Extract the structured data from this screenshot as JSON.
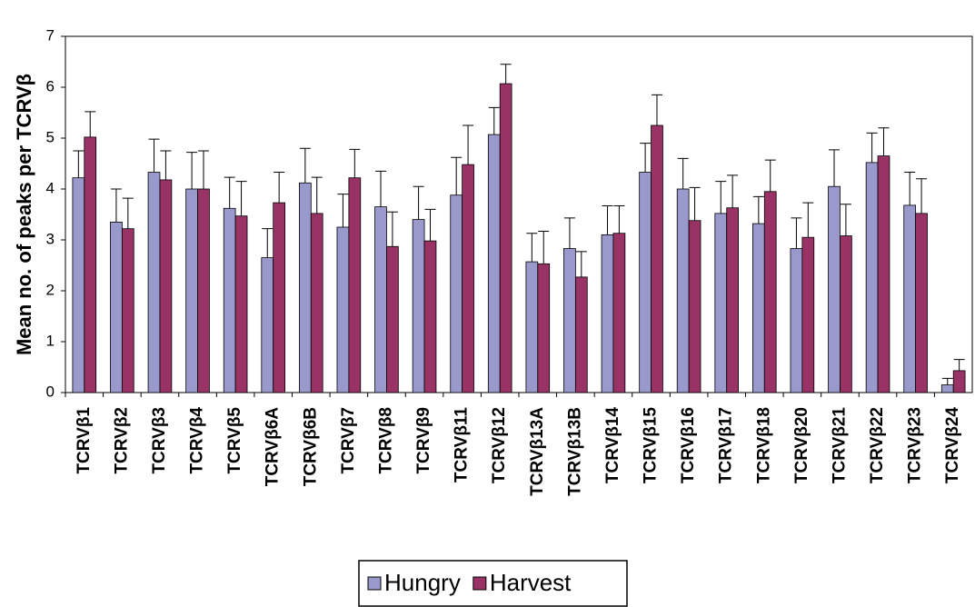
{
  "chart_data": {
    "type": "bar",
    "y_label": "Mean no. of peaks per TCRVβ",
    "categories": [
      "TCRVβ1",
      "TCRVβ2",
      "TCRVβ3",
      "TCRVβ4",
      "TCRVβ5",
      "TCRVβ6A",
      "TCRVβ6B",
      "TCRVβ7",
      "TCRVβ8",
      "TCRVβ9",
      "TCRVβ11",
      "TCRVβ12",
      "TCRVβ13A",
      "TCRVβ13B",
      "TCRVβ14",
      "TCRVβ15",
      "TCRVβ16",
      "TCRVβ17",
      "TCRVβ18",
      "TCRVβ20",
      "TCRVβ21",
      "TCRVβ22",
      "TCRVβ23",
      "TCRVβ24"
    ],
    "series": [
      {
        "name": "Hungry",
        "color": "#9999cc",
        "values": [
          4.22,
          3.35,
          4.33,
          4.0,
          3.62,
          2.65,
          4.12,
          3.25,
          3.65,
          3.4,
          3.88,
          5.07,
          2.57,
          2.83,
          3.1,
          4.33,
          4.0,
          3.52,
          3.32,
          2.83,
          4.05,
          4.52,
          3.68,
          0.15
        ],
        "errors": [
          0.53,
          0.65,
          0.65,
          0.72,
          0.61,
          0.57,
          0.68,
          0.65,
          0.7,
          0.65,
          0.74,
          0.53,
          0.56,
          0.6,
          0.57,
          0.57,
          0.6,
          0.63,
          0.53,
          0.6,
          0.72,
          0.58,
          0.65,
          0.13
        ]
      },
      {
        "name": "Harvest",
        "color": "#993366",
        "values": [
          5.02,
          3.22,
          4.18,
          4.0,
          3.47,
          3.73,
          3.52,
          4.22,
          2.87,
          2.98,
          4.48,
          6.07,
          2.53,
          2.27,
          3.13,
          5.25,
          3.38,
          3.63,
          3.95,
          3.05,
          3.08,
          4.65,
          3.52,
          0.43
        ],
        "errors": [
          0.5,
          0.6,
          0.57,
          0.75,
          0.68,
          0.6,
          0.71,
          0.56,
          0.68,
          0.62,
          0.77,
          0.38,
          0.64,
          0.5,
          0.54,
          0.6,
          0.65,
          0.64,
          0.62,
          0.68,
          0.62,
          0.55,
          0.68,
          0.22
        ]
      }
    ],
    "ylim": [
      0,
      7
    ],
    "yticks": [
      0,
      1,
      2,
      3,
      4,
      5,
      6,
      7
    ],
    "legend": "bottom"
  }
}
